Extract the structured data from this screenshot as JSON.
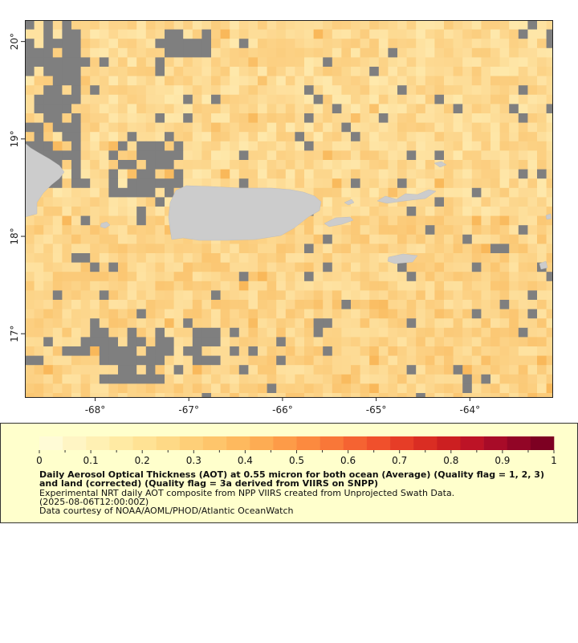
{
  "map": {
    "lat_range": [
      16.35,
      20.22
    ],
    "lon_range": [
      -68.75,
      -63.12
    ],
    "lat_ticks": [
      {
        "value": 17,
        "label": "17°"
      },
      {
        "value": 18,
        "label": "18°"
      },
      {
        "value": 19,
        "label": "19°"
      },
      {
        "value": 20,
        "label": "20°"
      }
    ],
    "lon_ticks": [
      {
        "value": -68,
        "label": "-68°"
      },
      {
        "value": -67,
        "label": "-67°"
      },
      {
        "value": -66,
        "label": "-66°"
      },
      {
        "value": -65,
        "label": "-65°"
      },
      {
        "value": -64,
        "label": "-64°"
      }
    ],
    "colors": {
      "missing": "#7f7f7f",
      "land": "#cccccc",
      "low": "#ffedb3",
      "high": "#f9b85a"
    },
    "layers": [
      "Aerosol Optical Thickness grid",
      "no-data cells",
      "land"
    ],
    "land_features": [
      "Puerto Rico",
      "Hispaniola (east coast)",
      "Vieques",
      "Culebra",
      "US Virgin Islands",
      "St. Croix",
      "Mona Island"
    ]
  },
  "legend": {
    "range": [
      0,
      1
    ],
    "tick_labels": [
      "0",
      "0.1",
      "0.2",
      "0.3",
      "0.4",
      "0.5",
      "0.6",
      "0.7",
      "0.8",
      "0.9",
      "1"
    ],
    "colors": [
      "#fffbd6",
      "#fff5c4",
      "#fff0b3",
      "#ffeaa3",
      "#ffe294",
      "#fed986",
      "#fecf78",
      "#fec56b",
      "#feb95e",
      "#fdac53",
      "#fd9b48",
      "#fc8a3f",
      "#f97738",
      "#f56332",
      "#f0502c",
      "#e63d27",
      "#da2d23",
      "#cc1f21",
      "#bd1326",
      "#a80b28",
      "#920526",
      "#7d0022"
    ]
  },
  "caption": {
    "title": "Daily Aerosol Optical Thickness (AOT) at 0.55 micron for both ocean (Average) (Quality flag = 1, 2, 3) and land (corrected) (Quality flag = 3a derived from VIIRS on SNPP)",
    "description": "Experimental NRT daily AOT composite from NPP VIIRS created from Unprojected Swath Data.",
    "time": "(2025-08-06T12:00:00Z)",
    "credit": "Data courtesy of NOAA/AOML/PHOD/Atlantic OceanWatch"
  }
}
